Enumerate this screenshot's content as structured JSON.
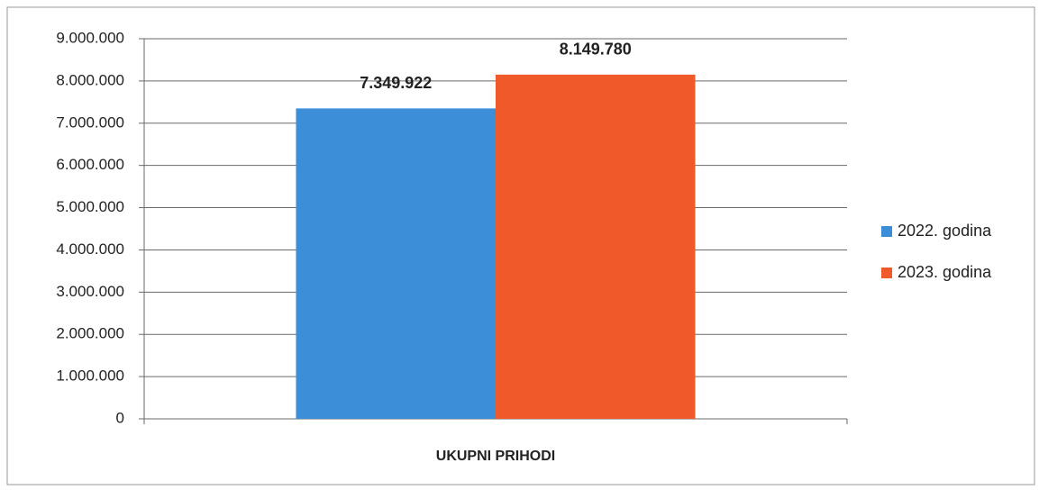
{
  "chart_data": {
    "type": "bar",
    "categories": [
      "UKUPNI PRIHODI"
    ],
    "series": [
      {
        "name": "2022. godina",
        "color": "#3d8ed8",
        "values": [
          7349922
        ],
        "value_labels": [
          "7.349.922"
        ]
      },
      {
        "name": "2023. godina",
        "color": "#f05a2a",
        "values": [
          8149780
        ],
        "value_labels": [
          "8.149.780"
        ]
      }
    ],
    "ylim": [
      0,
      9000000
    ],
    "yticks": [
      0,
      {
        "value": 1000000,
        "label": "1.000.000"
      },
      {
        "value": 2000000,
        "label": "2.000.000"
      },
      {
        "value": 3000000,
        "label": "3.000.000"
      },
      {
        "value": 4000000,
        "label": "4.000.000"
      },
      {
        "value": 5000000,
        "label": "5.000.000"
      },
      {
        "value": 6000000,
        "label": "6.000.000"
      },
      {
        "value": 7000000,
        "label": "7.000.000"
      },
      {
        "value": 8000000,
        "label": "8.000.000"
      },
      {
        "value": 9000000,
        "label": "9.000.000"
      }
    ],
    "grid": true,
    "legend": "right"
  }
}
